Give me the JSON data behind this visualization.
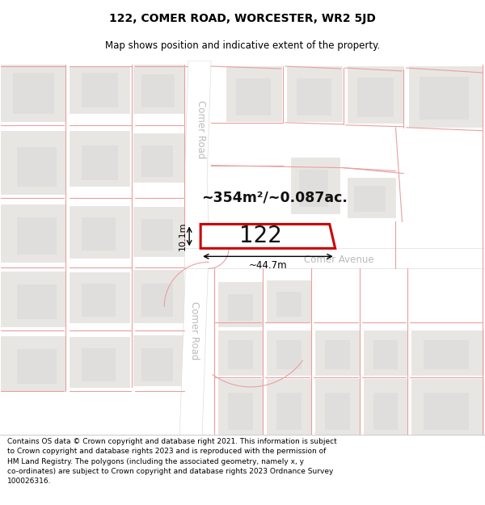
{
  "title": "122, COMER ROAD, WORCESTER, WR2 5JD",
  "subtitle": "Map shows position and indicative extent of the property.",
  "footer": "Contains OS data © Crown copyright and database right 2021. This information is subject\nto Crown copyright and database rights 2023 and is reproduced with the permission of\nHM Land Registry. The polygons (including the associated geometry, namely x, y\nco-ordinates) are subject to Crown copyright and database rights 2023 Ordnance Survey\n100026316.",
  "map_bg": "#f7f5f2",
  "building_fill": "#e8e6e3",
  "building_edge": "#e8e6e3",
  "road_fill": "#ffffff",
  "highlight_fill": "#ffffff",
  "highlight_edge": "#cc0000",
  "highlight_lw": 2.2,
  "pink": "#e8a0a0",
  "road_label_color": "#bbbbbb",
  "property_label": "122",
  "area_label": "~354m²/~0.087ac.",
  "dim_width": "~44.7m",
  "dim_height": "10.1m",
  "title_fontsize": 10,
  "subtitle_fontsize": 8.5,
  "footer_fontsize": 6.5
}
